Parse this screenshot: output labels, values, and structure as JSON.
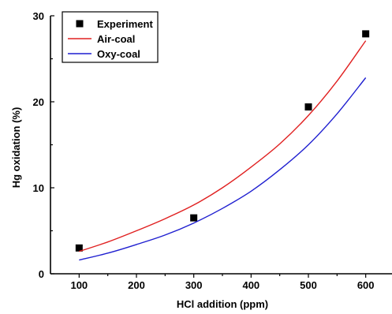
{
  "chart_data": {
    "type": "scatter",
    "title": "",
    "xlabel": "HCl addition (ppm)",
    "ylabel": "Hg oxidation (%)",
    "xlim": [
      50,
      650
    ],
    "ylim": [
      0,
      30
    ],
    "xticks": [
      100,
      200,
      300,
      400,
      500,
      600
    ],
    "yticks": [
      0,
      10,
      20,
      30
    ],
    "x_tick_labels": [
      "100",
      "200",
      "300",
      "400",
      "500",
      "600"
    ],
    "y_tick_labels": [
      "0",
      "10",
      "20",
      "30"
    ],
    "grid": false,
    "legend_position": "top-left",
    "series": [
      {
        "name": "Experiment",
        "kind": "scatter",
        "marker": "square",
        "color": "#000000",
        "x": [
          100,
          300,
          500,
          600
        ],
        "y": [
          3.0,
          6.5,
          19.4,
          27.9
        ]
      },
      {
        "name": "Air-coal",
        "kind": "line",
        "color": "#e02020",
        "x": [
          100,
          150,
          200,
          250,
          300,
          350,
          400,
          450,
          500,
          550,
          600
        ],
        "y": [
          2.6,
          3.7,
          5.0,
          6.4,
          8.0,
          10.0,
          12.4,
          15.1,
          18.4,
          22.4,
          27.1
        ]
      },
      {
        "name": "Oxy-coal",
        "kind": "line",
        "color": "#1f1fd0",
        "x": [
          100,
          150,
          200,
          250,
          300,
          350,
          400,
          450,
          500,
          550,
          600
        ],
        "y": [
          1.6,
          2.4,
          3.4,
          4.5,
          5.9,
          7.6,
          9.6,
          12.1,
          15.0,
          18.6,
          22.8
        ]
      }
    ]
  }
}
